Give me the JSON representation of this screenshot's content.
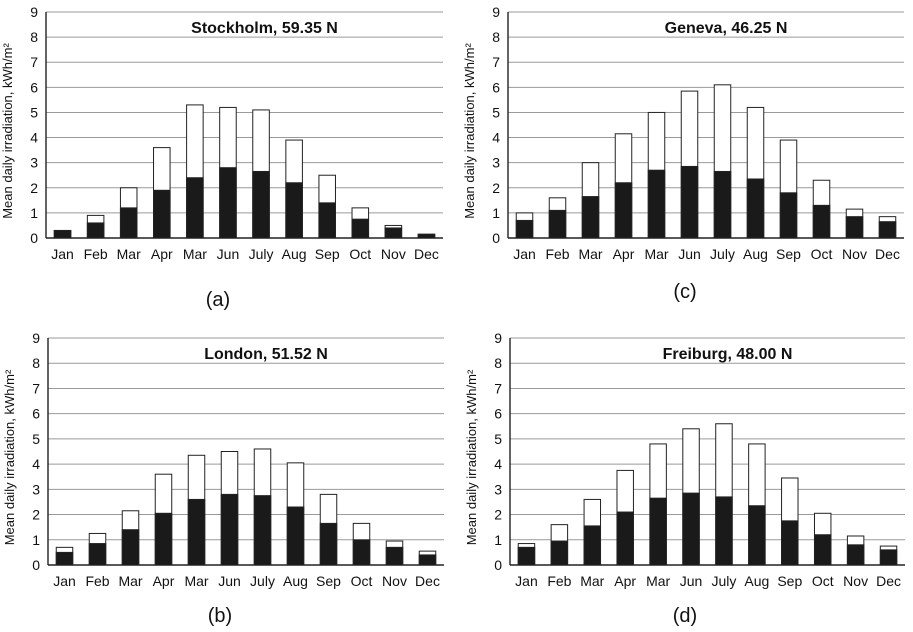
{
  "figure": {
    "captions": [
      "(a)",
      "(c)",
      "(b)",
      "(d)"
    ]
  },
  "colors": {
    "beam": "#1a1a1a",
    "total": "#ffffff",
    "outline": "#222222",
    "grid": "#9a9a9a"
  },
  "chart_data": [
    {
      "type": "bar",
      "stacked": true,
      "title": "Stockholm, 59.35 N",
      "caption": "(a)",
      "ylabel": "Mean daily irradiation, kWh/m²",
      "ylim": [
        0,
        9
      ],
      "yticks": [
        0,
        1,
        2,
        3,
        4,
        5,
        6,
        7,
        8,
        9
      ],
      "grid": true,
      "categories": [
        "Jan",
        "Feb",
        "Mar",
        "Apr",
        "Mar",
        "Jun",
        "July",
        "Aug",
        "Sep",
        "Oct",
        "Nov",
        "Dec"
      ],
      "series": [
        {
          "role": "dark",
          "values": [
            0.3,
            0.6,
            1.2,
            1.9,
            2.4,
            2.8,
            2.65,
            2.2,
            1.4,
            0.75,
            0.4,
            0.15
          ]
        },
        {
          "role": "total",
          "values": [
            0.3,
            0.9,
            2.0,
            3.6,
            5.3,
            5.2,
            5.1,
            3.9,
            2.5,
            1.2,
            0.5,
            0.15
          ]
        }
      ]
    },
    {
      "type": "bar",
      "stacked": true,
      "title": "Geneva, 46.25 N",
      "caption": "(c)",
      "ylabel": "Mean daily irradiation, kWh/m²",
      "ylim": [
        0,
        9
      ],
      "yticks": [
        0,
        1,
        2,
        3,
        4,
        5,
        6,
        7,
        8,
        9
      ],
      "grid": true,
      "categories": [
        "Jan",
        "Feb",
        "Mar",
        "Apr",
        "Mar",
        "Jun",
        "July",
        "Aug",
        "Sep",
        "Oct",
        "Nov",
        "Dec"
      ],
      "series": [
        {
          "role": "dark",
          "values": [
            0.7,
            1.1,
            1.65,
            2.2,
            2.7,
            2.85,
            2.65,
            2.35,
            1.8,
            1.3,
            0.85,
            0.65
          ]
        },
        {
          "role": "total",
          "values": [
            1.0,
            1.6,
            3.0,
            4.15,
            5.0,
            5.85,
            6.1,
            5.2,
            3.9,
            2.3,
            1.15,
            0.85
          ]
        }
      ]
    },
    {
      "type": "bar",
      "stacked": true,
      "title": "London, 51.52 N",
      "caption": "(b)",
      "ylabel": "Mean daily irradiation, kWh/m²",
      "ylim": [
        0,
        9
      ],
      "yticks": [
        0,
        1,
        2,
        3,
        4,
        5,
        6,
        7,
        8,
        9
      ],
      "grid": true,
      "categories": [
        "Jan",
        "Feb",
        "Mar",
        "Apr",
        "Mar",
        "Jun",
        "July",
        "Aug",
        "Sep",
        "Oct",
        "Nov",
        "Dec"
      ],
      "series": [
        {
          "role": "dark",
          "values": [
            0.5,
            0.85,
            1.4,
            2.05,
            2.6,
            2.8,
            2.75,
            2.3,
            1.65,
            1.0,
            0.7,
            0.4
          ]
        },
        {
          "role": "total",
          "values": [
            0.7,
            1.25,
            2.15,
            3.6,
            4.35,
            4.5,
            4.6,
            4.05,
            2.8,
            1.65,
            0.95,
            0.55
          ]
        }
      ]
    },
    {
      "type": "bar",
      "stacked": true,
      "title": "Freiburg, 48.00 N",
      "caption": "(d)",
      "ylabel": "Mean daily irradiation, kWh/m²",
      "ylim": [
        0,
        9
      ],
      "yticks": [
        0,
        1,
        2,
        3,
        4,
        5,
        6,
        7,
        8,
        9
      ],
      "grid": true,
      "categories": [
        "Jan",
        "Feb",
        "Mar",
        "Apr",
        "Mar",
        "Jun",
        "July",
        "Aug",
        "Sep",
        "Oct",
        "Nov",
        "Dec"
      ],
      "series": [
        {
          "role": "dark",
          "values": [
            0.7,
            0.95,
            1.55,
            2.1,
            2.65,
            2.85,
            2.7,
            2.35,
            1.75,
            1.2,
            0.8,
            0.6
          ]
        },
        {
          "role": "total",
          "values": [
            0.85,
            1.6,
            2.6,
            3.75,
            4.8,
            5.4,
            5.6,
            4.8,
            3.45,
            2.05,
            1.15,
            0.75
          ]
        }
      ]
    }
  ]
}
